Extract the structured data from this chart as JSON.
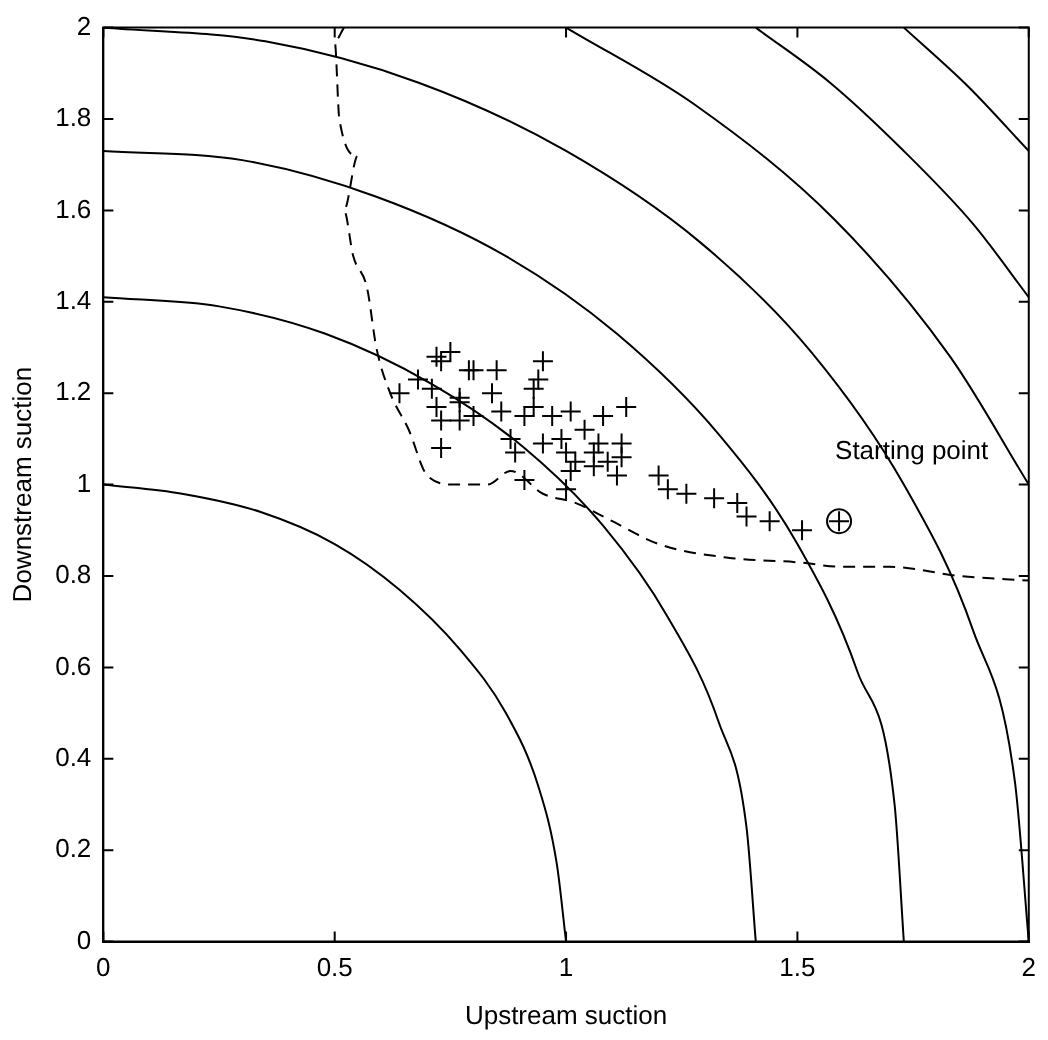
{
  "chart_data": {
    "type": "scatter",
    "xlabel": "Upstream suction",
    "ylabel": "Downstream suction",
    "xlim": [
      0,
      2
    ],
    "ylim": [
      0,
      2
    ],
    "xticks": [
      0,
      0.5,
      1,
      1.5,
      2
    ],
    "yticks": [
      0,
      0.2,
      0.4,
      0.6,
      0.8,
      1,
      1.2,
      1.4,
      1.6,
      1.8,
      2
    ],
    "grid": false,
    "legend": false,
    "annotations": [
      {
        "text": "Starting point",
        "x": 1.59,
        "y": 0.92
      }
    ],
    "series": [
      {
        "type": "line",
        "color": "#000000",
        "marker": "none",
        "line_style": "solid",
        "x": [
          1,
          0.98,
          0.94,
          0.87,
          0.77,
          0.64,
          0.5,
          0.34,
          0.17,
          0
        ],
        "values": [
          0,
          0.17,
          0.34,
          0.5,
          0.64,
          0.77,
          0.87,
          0.94,
          0.98,
          1
        ]
      },
      {
        "type": "line",
        "color": "#000000",
        "marker": "none",
        "line_style": "solid",
        "x": [
          1.41,
          1.39,
          1.33,
          1.22,
          1.08,
          0.91,
          0.71,
          0.48,
          0.25,
          0
        ],
        "values": [
          0,
          0.25,
          0.48,
          0.71,
          0.91,
          1.08,
          1.22,
          1.33,
          1.39,
          1.41
        ]
      },
      {
        "type": "line",
        "color": "#000000",
        "marker": "none",
        "line_style": "solid",
        "x": [
          1.73,
          1.71,
          1.63,
          1.5,
          1.33,
          1.11,
          0.87,
          0.59,
          0.3,
          0
        ],
        "values": [
          0,
          0.3,
          0.59,
          0.87,
          1.11,
          1.33,
          1.5,
          1.63,
          1.71,
          1.73
        ]
      },
      {
        "type": "line",
        "color": "#000000",
        "marker": "none",
        "line_style": "solid",
        "x": [
          2,
          1.97,
          1.88,
          1.73,
          1.53,
          1.29,
          1,
          0.68,
          0.35,
          0
        ],
        "values": [
          0,
          0.35,
          0.68,
          1,
          1.29,
          1.53,
          1.73,
          1.88,
          1.97,
          2
        ]
      },
      {
        "type": "line",
        "color": "#000000",
        "marker": "none",
        "line_style": "solid",
        "x": [
          2,
          1.83,
          1.58,
          1.28,
          1
        ],
        "values": [
          1,
          1.28,
          1.58,
          1.83,
          2
        ]
      },
      {
        "type": "line",
        "color": "#000000",
        "marker": "none",
        "line_style": "solid",
        "x": [
          2,
          1.88,
          1.73,
          1.57,
          1.41
        ],
        "values": [
          1.41,
          1.57,
          1.73,
          1.88,
          2
        ]
      },
      {
        "type": "line",
        "color": "#000000",
        "marker": "none",
        "line_style": "solid",
        "x": [
          2,
          1.87,
          1.73
        ],
        "values": [
          1.73,
          1.87,
          2
        ]
      },
      {
        "type": "line",
        "color": "#000000",
        "marker": "none",
        "line_style": "dashed",
        "x": [
          0.52,
          0.5,
          0.51,
          0.55,
          0.52,
          0.54,
          0.57,
          0.59,
          0.62,
          0.66,
          0.7,
          0.76,
          0.83,
          0.88,
          0.95,
          1.02,
          1.1,
          1.2,
          1.35,
          1.5,
          1.6,
          1.7,
          1.85,
          2
        ],
        "values": [
          2,
          1.97,
          1.8,
          1.72,
          1.6,
          1.5,
          1.43,
          1.3,
          1.2,
          1.12,
          1.02,
          1,
          1,
          1.03,
          0.98,
          0.96,
          0.92,
          0.87,
          0.84,
          0.83,
          0.82,
          0.82,
          0.8,
          0.79
        ]
      },
      {
        "type": "scatter",
        "color": "#000000",
        "marker": "cross",
        "x": [
          0.72,
          0.75,
          0.73,
          0.79,
          0.8,
          0.85,
          0.95,
          0.68,
          0.71,
          0.77,
          0.77,
          0.84,
          0.93,
          0.94,
          0.72,
          0.73,
          0.77,
          0.8,
          0.86,
          0.91,
          0.93,
          0.97,
          1.01,
          1.08,
          1.13,
          0.73,
          0.88,
          0.89,
          0.95,
          0.99,
          1.04,
          1.07,
          1.12,
          1,
          1.02,
          1.06,
          1.09,
          1.12,
          1.11,
          1.01,
          1.06,
          0.91,
          1,
          1.2,
          1.22,
          1.26,
          1.32,
          1.37,
          1.39,
          1.44,
          1.51,
          1.59,
          0.64
        ],
        "values": [
          1.28,
          1.29,
          1.27,
          1.25,
          1.25,
          1.25,
          1.27,
          1.23,
          1.21,
          1.19,
          1.18,
          1.2,
          1.21,
          1.23,
          1.17,
          1.14,
          1.14,
          1.15,
          1.16,
          1.15,
          1.17,
          1.15,
          1.16,
          1.15,
          1.17,
          1.08,
          1.1,
          1.07,
          1.09,
          1.1,
          1.12,
          1.09,
          1.09,
          1.07,
          1.05,
          1.07,
          1.05,
          1.06,
          1.02,
          1.03,
          1.04,
          1.01,
          0.99,
          1.02,
          0.99,
          0.98,
          0.97,
          0.96,
          0.93,
          0.92,
          0.9,
          0.92,
          1.2
        ]
      },
      {
        "type": "scatter",
        "color": "#000000",
        "x": [
          1.59
        ],
        "values": [
          0.92
        ]
      }
    ]
  }
}
